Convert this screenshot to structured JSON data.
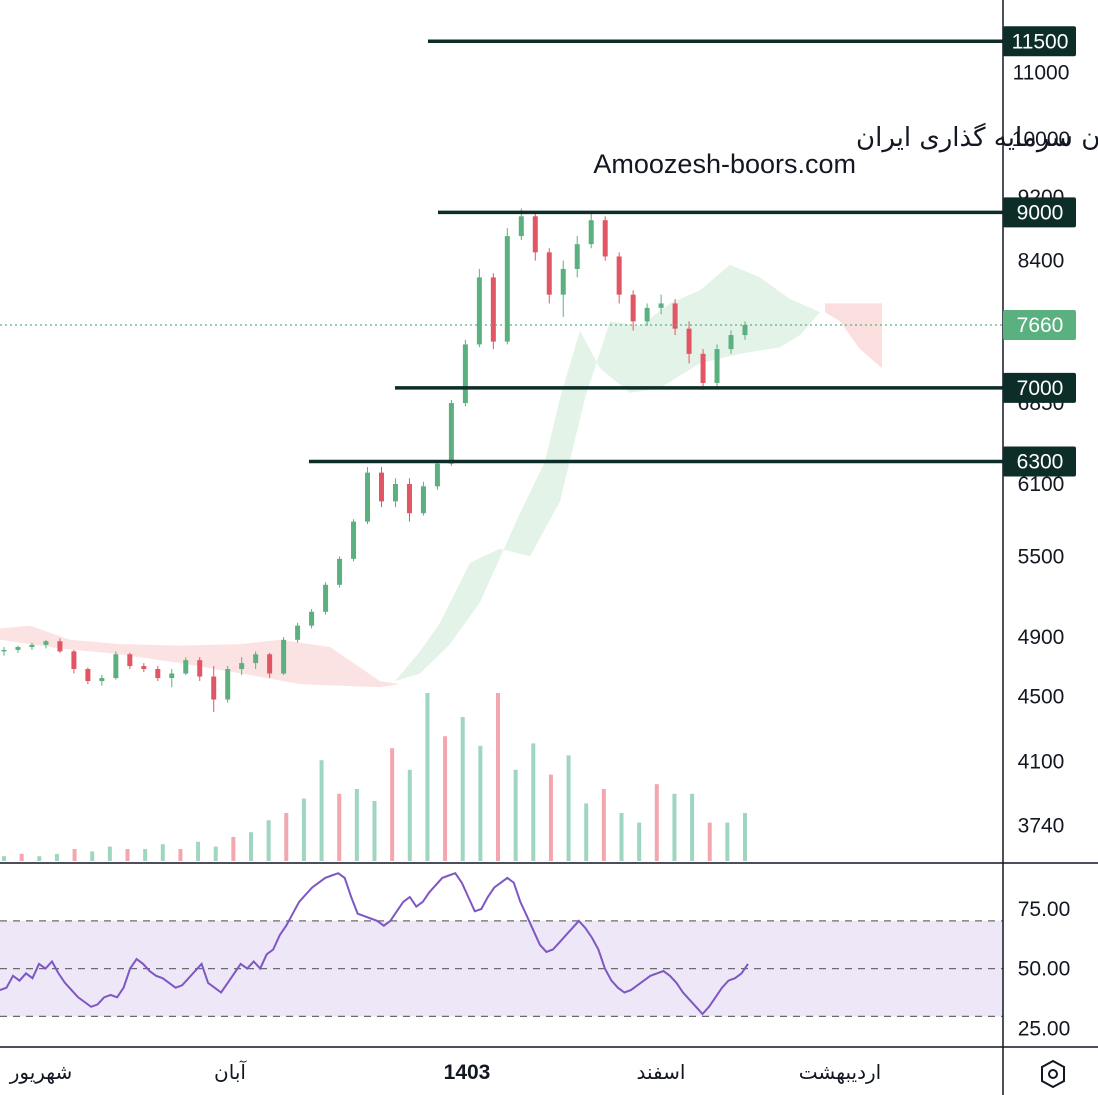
{
  "watermark": {
    "line1": "انجمن خبرگان سرمایه گذاری ایران",
    "line2": "Amoozesh-boors.com"
  },
  "chart_data": [
    {
      "type": "candlestick",
      "price_axis": {
        "scale": "log",
        "range": [
          3550,
          12200
        ],
        "tick_labels": [
          "11000",
          "10000",
          "9200",
          "8400",
          "6850",
          "6100",
          "5500",
          "4900",
          "4500",
          "4100",
          "3740"
        ]
      },
      "current_price": {
        "value": 7660,
        "label": "7660",
        "color": "#5ab17f"
      },
      "levels": [
        {
          "value": 11500,
          "label": "11500"
        },
        {
          "value": 9000,
          "label": "9000"
        },
        {
          "value": 7000,
          "label": "7000"
        },
        {
          "value": 6300,
          "label": "6300"
        }
      ],
      "x_labels": [
        "شهریور",
        "آبان",
        "1403",
        "اسفند",
        "اردیبهشت"
      ],
      "colors": {
        "up": "#5ab17f",
        "down": "#e25563",
        "level_line": "#0d2e28",
        "cloud_bull": "#dff1e4",
        "cloud_bear": "#fbdcdc"
      },
      "candle_ohlc_sample": [
        [
          4800,
          4830,
          4770,
          4810
        ],
        [
          4810,
          4840,
          4790,
          4830
        ],
        [
          4830,
          4860,
          4810,
          4845
        ],
        [
          4845,
          4880,
          4820,
          4870
        ],
        [
          4870,
          4890,
          4790,
          4800
        ],
        [
          4800,
          4810,
          4650,
          4680
        ],
        [
          4680,
          4690,
          4580,
          4600
        ],
        [
          4600,
          4640,
          4570,
          4620
        ],
        [
          4620,
          4800,
          4610,
          4780
        ],
        [
          4780,
          4790,
          4680,
          4700
        ],
        [
          4700,
          4720,
          4660,
          4680
        ],
        [
          4680,
          4700,
          4600,
          4620
        ],
        [
          4620,
          4680,
          4560,
          4650
        ],
        [
          4650,
          4760,
          4640,
          4740
        ],
        [
          4740,
          4760,
          4600,
          4630
        ],
        [
          4630,
          4700,
          4400,
          4480
        ],
        [
          4480,
          4700,
          4460,
          4680
        ],
        [
          4680,
          4760,
          4640,
          4720
        ],
        [
          4720,
          4800,
          4680,
          4780
        ],
        [
          4780,
          4790,
          4620,
          4650
        ],
        [
          4650,
          4900,
          4640,
          4880
        ],
        [
          4880,
          5000,
          4860,
          4980
        ],
        [
          4980,
          5100,
          4960,
          5080
        ],
        [
          5080,
          5300,
          5060,
          5280
        ],
        [
          5280,
          5500,
          5260,
          5480
        ],
        [
          5480,
          5800,
          5460,
          5780
        ],
        [
          5780,
          6250,
          5760,
          6200
        ],
        [
          6200,
          6250,
          5900,
          5950
        ],
        [
          5950,
          6150,
          5900,
          6100
        ],
        [
          6100,
          6150,
          5780,
          5850
        ],
        [
          5850,
          6120,
          5830,
          6080
        ],
        [
          6080,
          6300,
          6050,
          6280
        ],
        [
          6280,
          6880,
          6260,
          6850
        ],
        [
          6850,
          7500,
          6820,
          7450
        ],
        [
          7450,
          8300,
          7420,
          8200
        ],
        [
          8200,
          8250,
          7400,
          7480
        ],
        [
          7480,
          8800,
          7450,
          8700
        ],
        [
          8700,
          9050,
          8650,
          8950
        ],
        [
          8950,
          9000,
          8400,
          8500
        ],
        [
          8500,
          8550,
          7900,
          8000
        ],
        [
          8000,
          8400,
          7750,
          8300
        ],
        [
          8300,
          8700,
          8200,
          8600
        ],
        [
          8600,
          9000,
          8550,
          8900
        ],
        [
          8900,
          8950,
          8400,
          8450
        ],
        [
          8450,
          8500,
          7900,
          8000
        ],
        [
          8000,
          8050,
          7600,
          7700
        ],
        [
          7700,
          7900,
          7650,
          7850
        ],
        [
          7850,
          8000,
          7780,
          7900
        ],
        [
          7900,
          7950,
          7550,
          7620
        ],
        [
          7620,
          7700,
          7250,
          7350
        ],
        [
          7350,
          7400,
          6980,
          7050
        ],
        [
          7050,
          7450,
          7000,
          7400
        ],
        [
          7400,
          7600,
          7350,
          7550
        ],
        [
          7550,
          7700,
          7500,
          7660
        ]
      ],
      "volume_sample": [
        0.02,
        0.03,
        0.02,
        0.03,
        0.05,
        0.04,
        0.06,
        0.05,
        0.05,
        0.07,
        0.05,
        0.08,
        0.06,
        0.1,
        0.12,
        0.17,
        0.2,
        0.26,
        0.42,
        0.28,
        0.3,
        0.25,
        0.47,
        0.38,
        0.7,
        0.52,
        0.6,
        0.48,
        0.7,
        0.38,
        0.49,
        0.36,
        0.44,
        0.24,
        0.3,
        0.2,
        0.16,
        0.32,
        0.28,
        0.28,
        0.16,
        0.16,
        0.2
      ],
      "ichimoku_cloud": true
    },
    {
      "type": "line",
      "indicator": "RSI",
      "y_range": [
        18,
        93
      ],
      "tick_labels": [
        "75.00",
        "50.00",
        "25.00"
      ],
      "band": [
        30,
        70
      ],
      "midline": 50,
      "line_color": "#7e57c2",
      "band_color": "#ede7f8",
      "values": [
        41,
        42,
        47,
        45,
        48,
        46,
        52,
        50,
        53,
        48,
        44,
        41,
        38,
        36,
        34,
        35,
        38,
        39,
        38,
        42,
        50,
        54,
        52,
        49,
        47,
        46,
        44,
        42,
        43,
        46,
        49,
        52,
        44,
        42,
        40,
        44,
        48,
        52,
        50,
        53,
        50,
        56,
        58,
        64,
        68,
        73,
        78,
        81,
        84,
        86,
        88,
        89,
        90,
        88,
        80,
        73,
        72,
        71,
        70,
        68,
        70,
        74,
        78,
        80,
        76,
        78,
        82,
        85,
        88,
        89,
        90,
        86,
        80,
        74,
        75,
        80,
        84,
        86,
        88,
        86,
        78,
        72,
        66,
        60,
        57,
        58,
        61,
        64,
        67,
        70,
        67,
        63,
        58,
        50,
        45,
        42,
        40,
        41,
        43,
        45,
        47,
        48,
        49,
        47,
        44,
        40,
        37,
        34,
        31,
        34,
        38,
        42,
        45,
        46,
        48,
        52
      ]
    }
  ]
}
